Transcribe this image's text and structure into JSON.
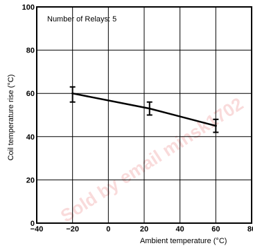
{
  "chart_data": {
    "type": "line",
    "annotation": "Number of Relays: 5",
    "xlabel": "Ambient temperature (°C)",
    "ylabel": "Coil temperature rise (°C)",
    "xlim": [
      -40,
      80
    ],
    "ylim": [
      0,
      100
    ],
    "x_ticks": [
      "−40",
      "−20",
      "0",
      "20",
      "40",
      "60",
      "80"
    ],
    "y_ticks": [
      "0",
      "20",
      "40",
      "60",
      "80",
      "100"
    ],
    "grid": true,
    "series": [
      {
        "x": [
          -20,
          23,
          60
        ],
        "y": [
          60,
          53,
          45
        ],
        "y_err_low": [
          56,
          50,
          42
        ],
        "y_err_high": [
          63,
          56,
          48
        ]
      }
    ]
  },
  "watermark_text": "Sold by email minsk1702"
}
